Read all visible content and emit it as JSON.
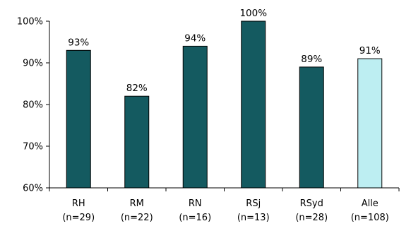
{
  "chart_data": {
    "type": "bar",
    "categories": [
      "RH",
      "RM",
      "RN",
      "RSj",
      "RSyd",
      "Alle"
    ],
    "category_notes": [
      "(n=29)",
      "(n=22)",
      "(n=16)",
      "(n=13)",
      "(n=28)",
      "(n=108)"
    ],
    "values": [
      93,
      82,
      94,
      100,
      89,
      91
    ],
    "data_labels": [
      "93%",
      "82%",
      "94%",
      "100%",
      "89%",
      "91%"
    ],
    "ylim": [
      60,
      100
    ],
    "yticks": [
      60,
      70,
      80,
      90,
      100
    ],
    "ytick_labels": [
      "60%",
      "70%",
      "80%",
      "90%",
      "100%"
    ],
    "grid": false,
    "colors": {
      "bar": "#145a60",
      "highlight_bar": "#bdeef2",
      "outline": "#000000"
    },
    "highlight_index": 5
  }
}
